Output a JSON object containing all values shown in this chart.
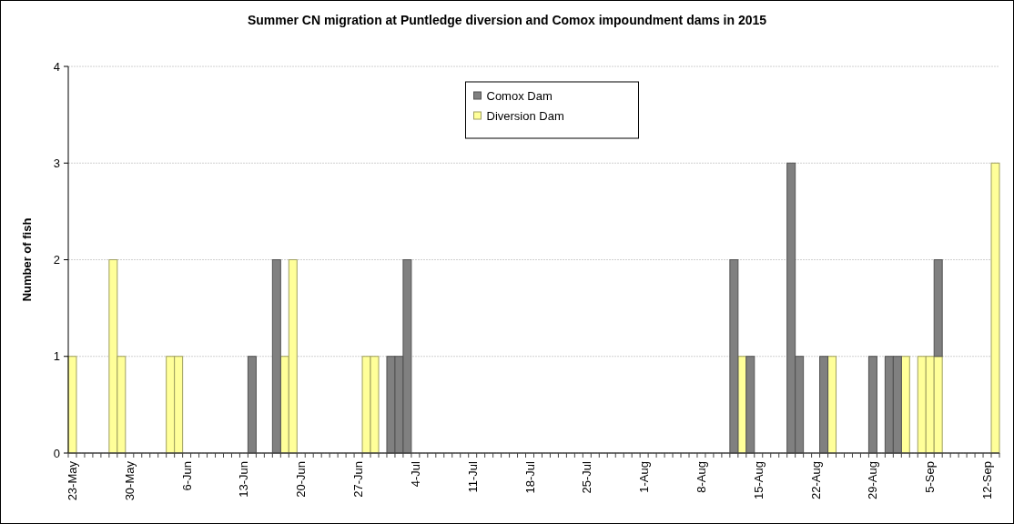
{
  "chart_data": {
    "type": "bar",
    "title": "Summer CN migration at Puntledge diversion and Comox impoundment dams in 2015",
    "ylabel": "Number of fish",
    "categories": [
      "23-May",
      null,
      null,
      null,
      null,
      null,
      null,
      "30-May",
      null,
      null,
      null,
      null,
      null,
      null,
      "6-Jun",
      null,
      null,
      null,
      null,
      null,
      null,
      "13-Jun",
      null,
      null,
      null,
      null,
      null,
      null,
      "20-Jun",
      null,
      null,
      null,
      null,
      null,
      null,
      "27-Jun",
      null,
      null,
      null,
      null,
      null,
      null,
      "4-Jul",
      null,
      null,
      null,
      null,
      null,
      null,
      "11-Jul",
      null,
      null,
      null,
      null,
      null,
      null,
      "18-Jul",
      null,
      null,
      null,
      null,
      null,
      null,
      "25-Jul",
      null,
      null,
      null,
      null,
      null,
      null,
      "1-Aug",
      null,
      null,
      null,
      null,
      null,
      null,
      "8-Aug",
      null,
      null,
      null,
      null,
      null,
      null,
      "15-Aug",
      null,
      null,
      null,
      null,
      null,
      null,
      "22-Aug",
      null,
      null,
      null,
      null,
      null,
      null,
      "29-Aug",
      null,
      null,
      null,
      null,
      null,
      null,
      "5-Sep",
      null,
      null,
      null,
      null,
      null,
      null,
      "12-Sep",
      null
    ],
    "series": [
      {
        "name": "Diversion Dam",
        "color": "#ffff99",
        "values": [
          1,
          0,
          0,
          0,
          0,
          2,
          1,
          0,
          0,
          0,
          0,
          0,
          1,
          1,
          0,
          0,
          0,
          0,
          0,
          0,
          0,
          0,
          0,
          0,
          0,
          0,
          1,
          2,
          0,
          0,
          0,
          0,
          0,
          0,
          0,
          0,
          1,
          1,
          0,
          0,
          0,
          0,
          0,
          0,
          0,
          0,
          0,
          0,
          0,
          0,
          0,
          0,
          0,
          0,
          0,
          0,
          0,
          0,
          0,
          0,
          0,
          0,
          0,
          0,
          0,
          0,
          0,
          0,
          0,
          0,
          0,
          0,
          0,
          0,
          0,
          0,
          0,
          0,
          0,
          0,
          0,
          0,
          1,
          0,
          0,
          0,
          0,
          0,
          0,
          0,
          0,
          0,
          0,
          1,
          0,
          0,
          0,
          0,
          0,
          0,
          0,
          0,
          1,
          0,
          1,
          1,
          1,
          0,
          0,
          0,
          0,
          0,
          0,
          3
        ]
      },
      {
        "name": "Comox Dam",
        "color": "#808080",
        "values": [
          0,
          0,
          0,
          0,
          0,
          0,
          0,
          0,
          0,
          0,
          0,
          0,
          0,
          0,
          0,
          0,
          0,
          0,
          0,
          0,
          0,
          0,
          1,
          0,
          0,
          2,
          0,
          0,
          0,
          0,
          0,
          0,
          0,
          0,
          0,
          0,
          0,
          0,
          0,
          1,
          1,
          2,
          0,
          0,
          0,
          0,
          0,
          0,
          0,
          0,
          0,
          0,
          0,
          0,
          0,
          0,
          0,
          0,
          0,
          0,
          0,
          0,
          0,
          0,
          0,
          0,
          0,
          0,
          0,
          0,
          0,
          0,
          0,
          0,
          0,
          0,
          0,
          0,
          0,
          0,
          0,
          2,
          0,
          1,
          0,
          0,
          0,
          0,
          3,
          1,
          0,
          0,
          1,
          0,
          0,
          0,
          0,
          0,
          1,
          0,
          1,
          1,
          0,
          0,
          0,
          0,
          1,
          0,
          0,
          0,
          0,
          0,
          0,
          0
        ]
      }
    ],
    "stacked": true,
    "ylim": [
      0,
      4
    ],
    "yticks": [
      0,
      1,
      2,
      3,
      4
    ],
    "grid": "y",
    "legend": "top"
  }
}
